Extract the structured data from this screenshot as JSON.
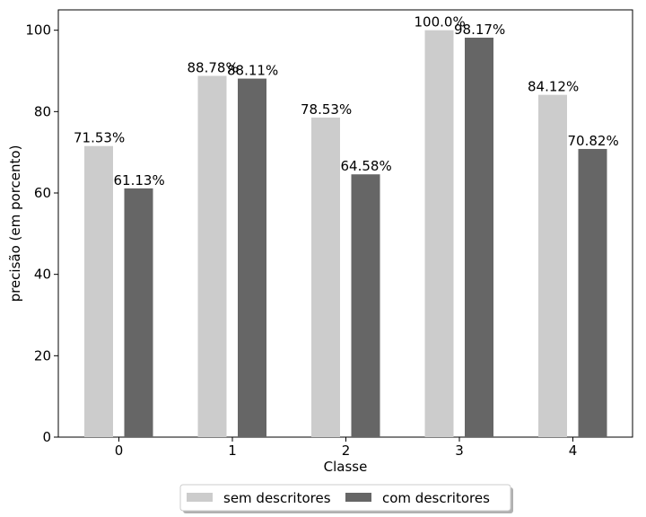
{
  "chart_data": {
    "type": "bar",
    "categories": [
      "0",
      "1",
      "2",
      "3",
      "4"
    ],
    "series": [
      {
        "name": "sem descritores",
        "color": "#cccccc",
        "values": [
          71.53,
          88.78,
          78.53,
          100.0,
          84.12
        ],
        "labels": [
          "71.53%",
          "88.78%",
          "78.53%",
          "100.0%",
          "84.12%"
        ]
      },
      {
        "name": "com descritores",
        "color": "#666666",
        "values": [
          61.13,
          88.11,
          64.58,
          98.17,
          70.82
        ],
        "labels": [
          "61.13%",
          "88.11%",
          "64.58%",
          "98.17%",
          "70.82%"
        ]
      }
    ],
    "xlabel": "Classe",
    "ylabel": "precisão (em porcento)",
    "ylim": [
      0,
      105
    ],
    "yticks": [
      0,
      20,
      40,
      60,
      80,
      100
    ],
    "grid": false,
    "legend_position": "bottom-center"
  }
}
